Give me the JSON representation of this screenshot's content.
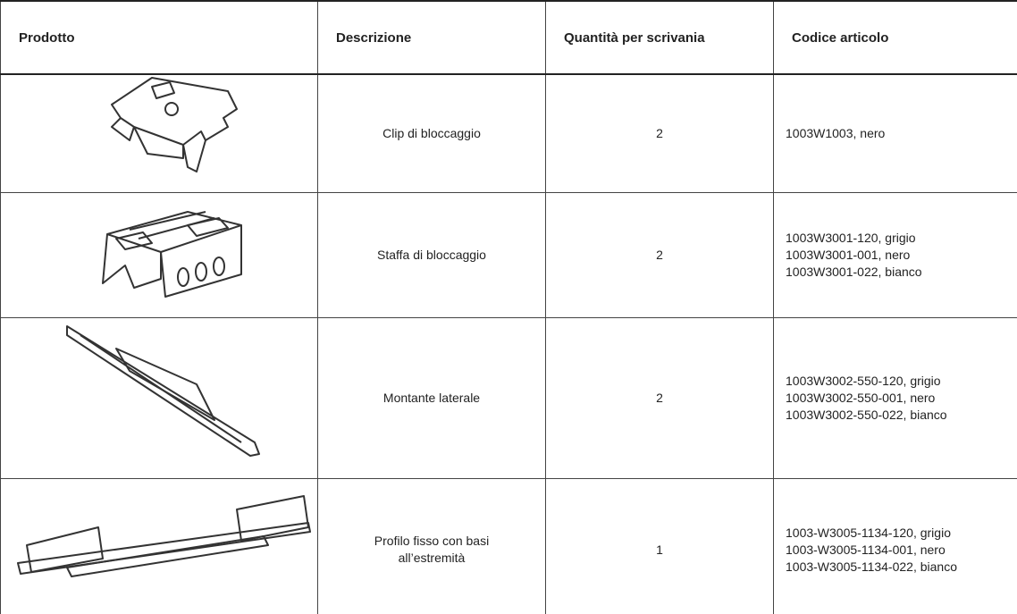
{
  "table": {
    "header": [
      "Prodotto",
      "Descrizione",
      "Quantità per scrivania",
      "Codice articolo"
    ],
    "rows": [
      {
        "description": [
          "Clip di bloccaggio"
        ],
        "quantity": 2,
        "codes": [
          "1003W1003, nero"
        ]
      },
      {
        "description": [
          "Staffa di bloccaggio"
        ],
        "quantity": 2,
        "codes": [
          "1003W3001-120, grigio",
          "1003W3001-001, nero",
          "1003W3001-022, bianco"
        ]
      },
      {
        "description": [
          "Montante laterale"
        ],
        "quantity": 2,
        "codes": [
          "1003W3002-550-120, grigio",
          "1003W3002-550-001, nero",
          "1003W3002-550-022, bianco"
        ]
      },
      {
        "description": [
          "Profilo fisso con basi",
          "all’estremità"
        ],
        "quantity": 1,
        "codes": [
          "1003-W3005-1134-120, grigio",
          "1003-W3005-1134-001, nero",
          "1003-W3005-1134-022, bianco"
        ]
      }
    ]
  }
}
